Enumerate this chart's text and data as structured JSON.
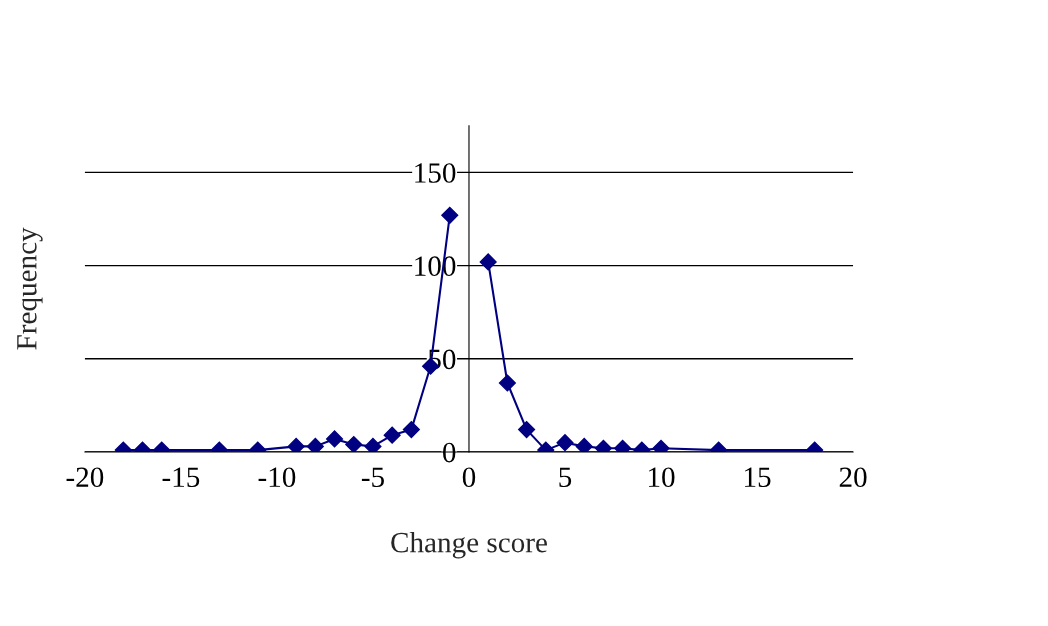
{
  "chart_data": {
    "type": "line",
    "xlabel": "Change score",
    "ylabel": "Frequency",
    "x": [
      -18,
      -17,
      -16,
      -13,
      -11,
      -9,
      -8,
      -7,
      -6,
      -5,
      -4,
      -3,
      -2,
      -1,
      0,
      1,
      2,
      3,
      4,
      5,
      6,
      7,
      8,
      9,
      10,
      13,
      18
    ],
    "series": [
      {
        "color": "#000080",
        "values": [
          1,
          1,
          1,
          1,
          1,
          3,
          3,
          7,
          4,
          3,
          9,
          12,
          46,
          127,
          null,
          102,
          37,
          12,
          1,
          5,
          3,
          2,
          2,
          1,
          2,
          1,
          1
        ]
      }
    ],
    "xlim": [
      -20,
      20
    ],
    "xticks": [
      -20,
      -15,
      -10,
      -5,
      0,
      5,
      10,
      15,
      20
    ],
    "ylim": [
      0,
      175
    ],
    "yticks": [
      0,
      50,
      100,
      150
    ],
    "grid": "y",
    "marker": "diamond",
    "line_style": "solid",
    "legend": false
  }
}
